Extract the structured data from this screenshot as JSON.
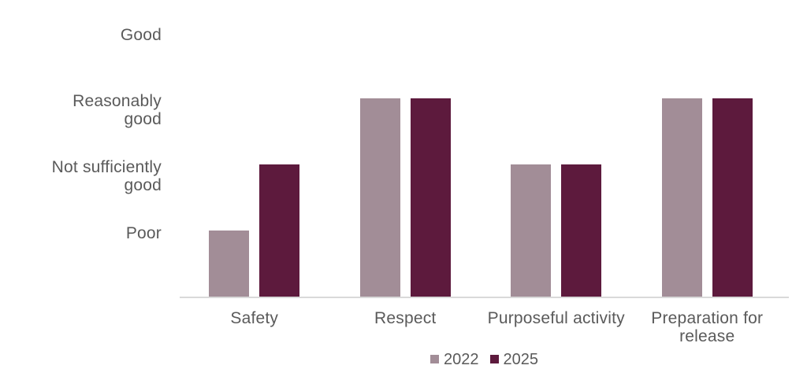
{
  "chart_data": {
    "type": "bar",
    "title": "",
    "categories": [
      "Safety",
      "Respect",
      "Purposeful activity",
      "Preparation for\nrelease"
    ],
    "series": [
      {
        "name": "2022",
        "color": "#a28d97",
        "values": [
          1,
          3,
          2,
          3
        ],
        "ratings": [
          "Poor",
          "Reasonably good",
          "Not sufficiently good",
          "Reasonably good"
        ]
      },
      {
        "name": "2025",
        "color": "#5d1a3d",
        "values": [
          2,
          3,
          2,
          3
        ],
        "ratings": [
          "Not sufficiently good",
          "Reasonably good",
          "Not sufficiently good",
          "Reasonably good"
        ]
      }
    ],
    "y_axis": {
      "min": 0,
      "max": 4,
      "ticks": [
        {
          "value": 4,
          "label": "Good"
        },
        {
          "value": 3,
          "label": "Reasonably\ngood"
        },
        {
          "value": 2,
          "label": "Not sufficiently\ngood"
        },
        {
          "value": 1,
          "label": "Poor"
        }
      ]
    },
    "grid": false,
    "legend": {
      "position": "bottom",
      "entries": [
        "2022",
        "2025"
      ]
    }
  },
  "colors": {
    "bar_2022": "#a28d97",
    "bar_2025": "#5d1a3d",
    "axis_line": "#d9d9d9",
    "label_text": "#5a5a5a",
    "background": "#ffffff"
  }
}
